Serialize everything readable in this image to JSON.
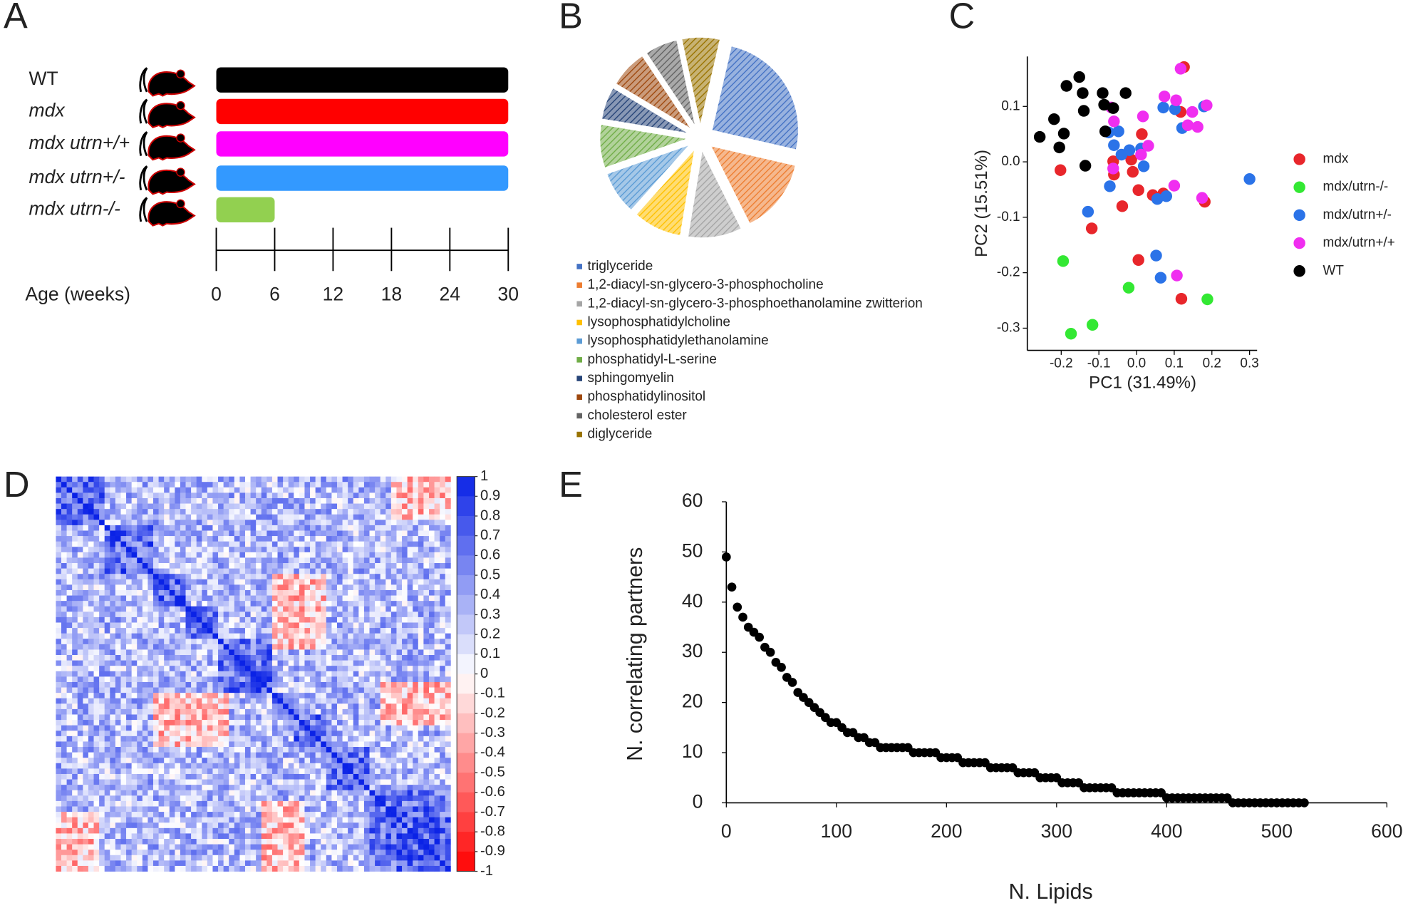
{
  "chart_data": [
    {
      "panel_label": "A",
      "type": "bar",
      "orientation": "horizontal",
      "categories": [
        "WT",
        "mdx",
        "mdx utrn+/+",
        "mdx utrn+/-",
        "mdx utrn-/-"
      ],
      "values": [
        30,
        30,
        30,
        30,
        6
      ],
      "colors": [
        "#000000",
        "#ff0000",
        "#ff00ff",
        "#3399ff",
        "#92d050"
      ],
      "xlabel": "Age (weeks)",
      "xlim": [
        0,
        30
      ],
      "xticks": [
        0,
        6,
        12,
        18,
        24,
        30
      ]
    },
    {
      "panel_label": "B",
      "type": "pie",
      "categories": [
        "triglyceride",
        "1,2-diacyl-sn-glycero-3-phosphocholine",
        "1,2-diacyl-sn-glycero-3-phosphoethanolamine zwitterion",
        "lysophosphatidylcholine",
        "lysophosphatidylethanolamine",
        "phosphatidyl-L-serine",
        "sphingomyelin",
        "phosphatidylinositol",
        "cholesterol ester",
        "diglyceride"
      ],
      "values": [
        25,
        14,
        10,
        9,
        8,
        8,
        6,
        7,
        6,
        7
      ],
      "colors": [
        "#4472c4",
        "#ed7d31",
        "#a5a5a5",
        "#ffc000",
        "#5b9bd5",
        "#70ad47",
        "#264478",
        "#9e480e",
        "#636363",
        "#997300"
      ]
    },
    {
      "panel_label": "C",
      "type": "scatter",
      "xlabel": "PC1 (31.49%)",
      "ylabel": "PC2 (15.51%)",
      "xlim": [
        -0.29,
        0.32
      ],
      "ylim": [
        -0.34,
        0.19
      ],
      "xticks": [
        -0.2,
        -0.1,
        {
          "value": 0,
          "label": "0.0"
        },
        0.1,
        0.2,
        0.3
      ],
      "yticks": [
        0.1,
        {
          "value": 0,
          "label": "0.0"
        },
        -0.1,
        -0.2,
        -0.3
      ],
      "series": [
        {
          "name": "mdx",
          "color": "#e8262b",
          "x": [
            0.126,
            0.117,
            0.014,
            -0.202,
            -0.062,
            -0.014,
            -0.01,
            -0.06,
            0.005,
            0.043,
            0.071,
            -0.038,
            0.181,
            -0.119,
            0.005,
            0.119
          ],
          "y": [
            0.171,
            0.09,
            0.05,
            -0.015,
            0.001,
            0.004,
            -0.018,
            -0.023,
            -0.051,
            -0.06,
            -0.057,
            -0.08,
            -0.072,
            -0.12,
            -0.177,
            -0.247
          ]
        },
        {
          "name": "mdx/utrn-/-",
          "color": "#33e833",
          "x": [
            -0.195,
            -0.021,
            0.188,
            -0.117,
            -0.174
          ],
          "y": [
            -0.179,
            -0.227,
            -0.248,
            -0.294,
            -0.31
          ]
        },
        {
          "name": "mdx/utrn+/-",
          "color": "#2b73e8",
          "x": [
            -0.074,
            -0.048,
            0.071,
            0.102,
            0.179,
            0.121,
            -0.04,
            -0.019,
            0.012,
            0.019,
            -0.071,
            0.055,
            0.079,
            -0.129,
            0.052,
            0.064,
            0.3,
            -0.06
          ],
          "y": [
            0.053,
            0.055,
            0.098,
            0.095,
            0.1,
            0.061,
            0.013,
            0.021,
            0.024,
            -0.008,
            -0.044,
            -0.067,
            -0.062,
            -0.09,
            -0.169,
            -0.209,
            -0.031,
            0.03
          ]
        },
        {
          "name": "mdx/utrn+/+",
          "color": "#f02ef0",
          "x": [
            0.117,
            0.105,
            0.074,
            0.148,
            0.186,
            0.136,
            0.162,
            -0.067,
            -0.06,
            0.017,
            0.031,
            0.012,
            -0.062,
            0.1,
            0.174,
            0.107
          ],
          "y": [
            0.168,
            0.111,
            0.118,
            0.09,
            0.102,
            0.066,
            0.063,
            0.098,
            0.073,
            0.082,
            0.029,
            0.013,
            -0.012,
            -0.043,
            -0.065,
            -0.205
          ]
        },
        {
          "name": "WT",
          "color": "#000000",
          "x": [
            -0.152,
            -0.186,
            -0.143,
            -0.09,
            -0.029,
            -0.219,
            -0.14,
            -0.086,
            -0.062,
            -0.257,
            -0.193,
            -0.205,
            -0.083,
            -0.136
          ],
          "y": [
            0.153,
            0.137,
            0.124,
            0.124,
            0.124,
            0.077,
            0.092,
            0.103,
            0.097,
            0.045,
            0.051,
            0.026,
            0.055,
            -0.007
          ]
        }
      ]
    },
    {
      "panel_label": "D",
      "type": "heatmap",
      "zlim": [
        -1,
        1
      ],
      "zticks": [
        1,
        0.9,
        0.8,
        0.7,
        0.6,
        0.5,
        0.4,
        0.3,
        0.2,
        0.1,
        0,
        -0.1,
        -0.2,
        -0.3,
        -0.4,
        -0.5,
        -0.6,
        -0.7,
        -0.8,
        -0.9,
        -1
      ],
      "colors": [
        "#ff0000",
        "#ffffff",
        "#0a22e6"
      ]
    },
    {
      "panel_label": "E",
      "type": "scatter",
      "color": "#000000",
      "xlabel": "N. Lipids",
      "ylabel": "N. correlating partners",
      "xlim": [
        0,
        600
      ],
      "ylim": [
        0,
        60
      ],
      "xticks": [
        0,
        100,
        200,
        300,
        400,
        500,
        600
      ],
      "yticks": [
        0,
        10,
        20,
        30,
        40,
        50,
        60
      ],
      "x": [
        0,
        5,
        10,
        15,
        20,
        25,
        30,
        35,
        40,
        45,
        50,
        55,
        60,
        65,
        70,
        75,
        80,
        85,
        90,
        95,
        100,
        105,
        110,
        115,
        120,
        125,
        130,
        135,
        140,
        145,
        150,
        155,
        160,
        165,
        170,
        175,
        180,
        185,
        190,
        195,
        200,
        205,
        210,
        215,
        220,
        225,
        230,
        235,
        240,
        245,
        250,
        255,
        260,
        265,
        270,
        275,
        280,
        285,
        290,
        295,
        300,
        305,
        310,
        315,
        320,
        325,
        330,
        335,
        340,
        345,
        350,
        355,
        360,
        365,
        370,
        375,
        380,
        385,
        390,
        395,
        400,
        405,
        410,
        415,
        420,
        425,
        430,
        435,
        440,
        445,
        450,
        455,
        460,
        465,
        470,
        475,
        480,
        485,
        490,
        495,
        500,
        505,
        510,
        515,
        520,
        525
      ],
      "values": [
        49,
        43,
        39,
        37,
        35,
        34,
        33,
        31,
        30,
        28,
        27,
        25,
        24,
        22,
        21,
        20,
        19,
        18,
        17,
        16,
        16,
        15,
        14,
        14,
        13,
        13,
        12,
        12,
        11,
        11,
        11,
        11,
        11,
        11,
        10,
        10,
        10,
        10,
        10,
        9,
        9,
        9,
        9,
        8,
        8,
        8,
        8,
        8,
        7,
        7,
        7,
        7,
        7,
        6,
        6,
        6,
        6,
        5,
        5,
        5,
        5,
        4,
        4,
        4,
        4,
        3,
        3,
        3,
        3,
        3,
        3,
        2,
        2,
        2,
        2,
        2,
        2,
        2,
        2,
        2,
        1,
        1,
        1,
        1,
        1,
        1,
        1,
        1,
        1,
        1,
        1,
        1,
        0,
        0,
        0,
        0,
        0,
        0,
        0,
        0,
        0,
        0,
        0,
        0,
        0,
        0
      ]
    }
  ]
}
